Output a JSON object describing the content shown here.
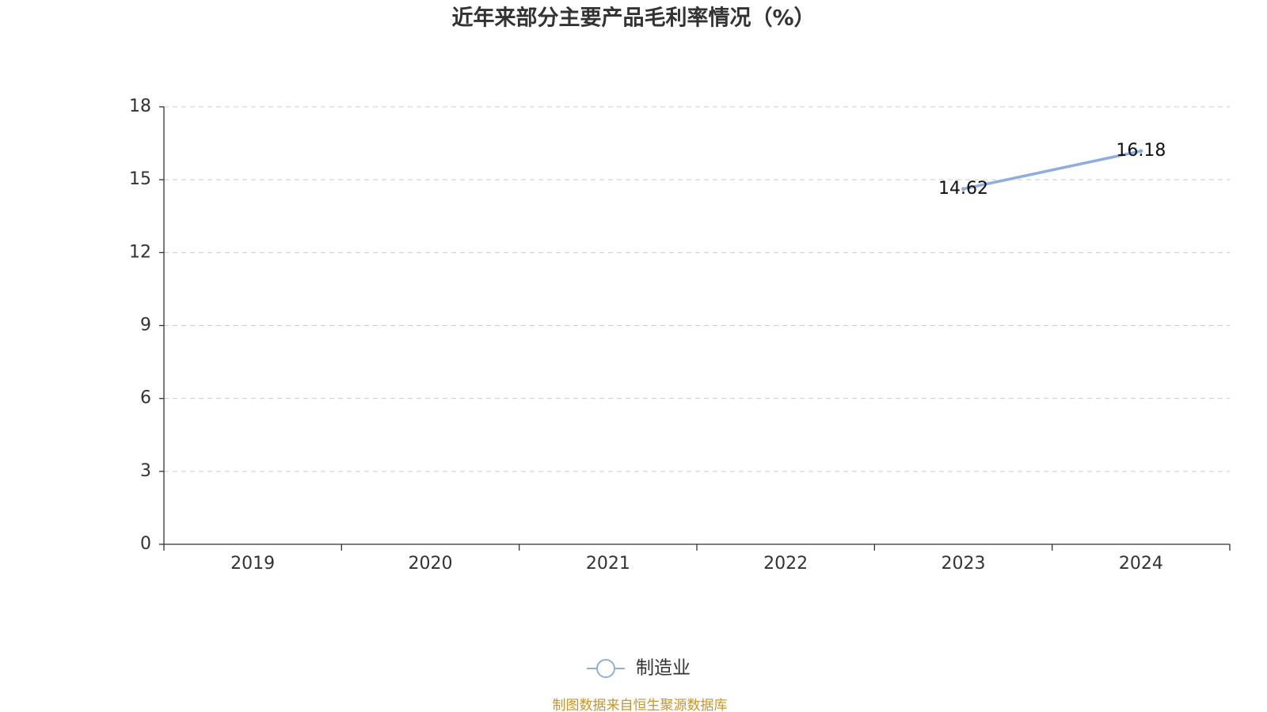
{
  "chart_data": {
    "type": "line",
    "title": "近年来部分主要产品毛利率情况（%）",
    "categories": [
      "2019",
      "2020",
      "2021",
      "2022",
      "2023",
      "2024"
    ],
    "series": [
      {
        "name": "制造业",
        "color": "#8eaedb",
        "values": [
          null,
          null,
          null,
          null,
          14.62,
          16.18
        ]
      }
    ],
    "ylim": [
      0,
      18
    ],
    "yticks": [
      0,
      3,
      6,
      9,
      12,
      15,
      18
    ],
    "grid": true,
    "legend": "bottom",
    "source": "制图数据来自恒生聚源数据库"
  }
}
